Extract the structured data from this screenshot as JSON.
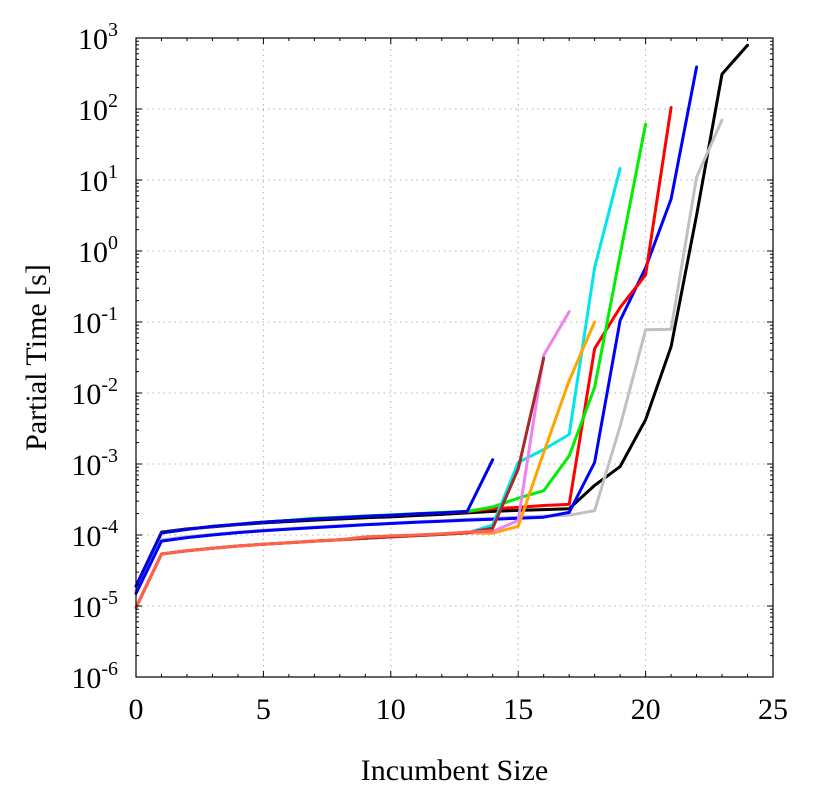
{
  "chart_data": {
    "type": "line",
    "title": "",
    "xlabel": "Incumbent Size",
    "ylabel": "Partial Time [s]",
    "xlim": [
      0,
      25
    ],
    "ylim_exponent": [
      -6,
      3
    ],
    "yscale": "log",
    "grid": true,
    "x_ticks": [
      "0",
      "5",
      "10",
      "15",
      "20",
      "25"
    ],
    "y_ticks": [
      {
        "base": "10",
        "exp": "-6"
      },
      {
        "base": "10",
        "exp": "-5"
      },
      {
        "base": "10",
        "exp": "-4"
      },
      {
        "base": "10",
        "exp": "-3"
      },
      {
        "base": "10",
        "exp": "-2"
      },
      {
        "base": "10",
        "exp": "-1"
      },
      {
        "base": "10",
        "exp": "0"
      },
      {
        "base": "10",
        "exp": "1"
      },
      {
        "base": "10",
        "exp": "2"
      },
      {
        "base": "10",
        "exp": "3"
      }
    ],
    "series": [
      {
        "color": "#000000",
        "x": [
          0,
          1,
          2,
          3,
          4,
          5,
          6,
          7,
          8,
          9,
          10,
          11,
          12,
          13,
          14,
          15,
          16,
          17,
          18,
          19,
          20,
          21,
          22,
          23,
          24
        ],
        "y": [
          1.9e-05,
          0.00011,
          0.000122,
          0.00013,
          0.00014,
          0.000148,
          0.000155,
          0.000162,
          0.000168,
          0.000175,
          0.00018,
          0.000188,
          0.000195,
          0.000205,
          0.000215,
          0.000222,
          0.000228,
          0.000235,
          0.0005,
          0.00092,
          0.0042,
          0.045,
          3.2,
          310,
          790
        ]
      },
      {
        "color": "#c0c0c0",
        "x": [
          0,
          1,
          2,
          3,
          4,
          5,
          6,
          7,
          8,
          9,
          10,
          11,
          12,
          13,
          14,
          15,
          16,
          17,
          18,
          19,
          20,
          21,
          22,
          23
        ],
        "y": [
          1.6e-05,
          8.5e-05,
          9.5e-05,
          0.000102,
          0.00011,
          0.000117,
          0.000123,
          0.000129,
          0.000135,
          0.000141,
          0.000147,
          0.000153,
          0.000159,
          0.000166,
          0.000172,
          0.000178,
          0.000185,
          0.00019,
          0.00022,
          0.0034,
          0.078,
          0.079,
          11,
          70
        ]
      },
      {
        "color": "#0000ff",
        "x": [
          0,
          1,
          2,
          3,
          4,
          5,
          6,
          7,
          8,
          9,
          10,
          11,
          12,
          13,
          14,
          15,
          16,
          17,
          18,
          19,
          20,
          21,
          22
        ],
        "y": [
          1.5e-05,
          8.2e-05,
          9.2e-05,
          0.0001,
          0.000108,
          0.000115,
          0.000121,
          0.000127,
          0.000133,
          0.000139,
          0.000145,
          0.000151,
          0.000156,
          0.000162,
          0.000167,
          0.000172,
          0.000178,
          0.000208,
          0.00105,
          0.105,
          0.58,
          5.4,
          390
        ]
      },
      {
        "color": "#ff0000",
        "x": [
          0,
          1,
          2,
          3,
          4,
          5,
          6,
          7,
          8,
          9,
          10,
          11,
          12,
          13,
          14,
          15,
          16,
          17,
          18,
          19,
          20,
          21
        ],
        "y": [
          1.9e-05,
          0.000107,
          0.00012,
          0.000132,
          0.000142,
          0.000152,
          0.00016,
          0.000168,
          0.000176,
          0.000184,
          0.00019,
          0.000198,
          0.000205,
          0.000212,
          0.000235,
          0.000245,
          0.00026,
          0.00027,
          0.042,
          0.16,
          0.46,
          105
        ]
      },
      {
        "color": "#00ee00",
        "x": [
          0,
          1,
          2,
          3,
          4,
          5,
          6,
          7,
          8,
          9,
          10,
          11,
          12,
          13,
          14,
          15,
          16,
          17,
          18,
          19,
          20
        ],
        "y": [
          1.9e-05,
          0.000107,
          0.00012,
          0.000132,
          0.000142,
          0.000152,
          0.00016,
          0.000172,
          0.000178,
          0.000185,
          0.000192,
          0.0002,
          0.000208,
          0.000215,
          0.000248,
          0.00033,
          0.00042,
          0.0013,
          0.012,
          0.88,
          61
        ]
      },
      {
        "color": "#00e5ee",
        "x": [
          0,
          1,
          2,
          3,
          4,
          5,
          6,
          7,
          8,
          9,
          10,
          11,
          12,
          13,
          14,
          15,
          16,
          17,
          18,
          19
        ],
        "y": [
          9.5e-06,
          5.4e-05,
          6e-05,
          6.5e-05,
          7e-05,
          7.4e-05,
          7.8e-05,
          8.2e-05,
          8.6e-05,
          9e-05,
          9.4e-05,
          9.8e-05,
          0.000102,
          0.000107,
          0.000138,
          0.00105,
          0.0016,
          0.0026,
          0.58,
          14.5
        ]
      },
      {
        "color": "#ffa500",
        "x": [
          0,
          1,
          2,
          3,
          4,
          5,
          6,
          7,
          8,
          9,
          10,
          11,
          12,
          13,
          14,
          15,
          16,
          17,
          18
        ],
        "y": [
          9.5e-06,
          5.4e-05,
          6e-05,
          6.5e-05,
          7e-05,
          7.4e-05,
          7.8e-05,
          8.2e-05,
          8.6e-05,
          9e-05,
          9.4e-05,
          9.8e-05,
          0.000102,
          0.000107,
          0.000106,
          0.000132,
          0.00145,
          0.015,
          0.1
        ]
      },
      {
        "color": "#ee82ee",
        "x": [
          0,
          1,
          2,
          3,
          4,
          5,
          6,
          7,
          8,
          9,
          10,
          11,
          12,
          13,
          14,
          15,
          16,
          17
        ],
        "y": [
          9.5e-06,
          5.4e-05,
          6e-05,
          6.5e-05,
          7e-05,
          7.4e-05,
          7.8e-05,
          8.2e-05,
          8.6e-05,
          9e-05,
          9.4e-05,
          9.8e-05,
          0.000102,
          0.000107,
          0.000112,
          0.00016,
          0.034,
          0.14
        ]
      },
      {
        "color": "#a52a2a",
        "x": [
          0,
          1,
          2,
          3,
          4,
          5,
          6,
          7,
          8,
          9,
          10,
          11,
          12,
          13,
          14,
          15,
          16
        ],
        "y": [
          9.5e-06,
          5.4e-05,
          6e-05,
          6.5e-05,
          7e-05,
          7.4e-05,
          7.8e-05,
          8.2e-05,
          8.6e-05,
          9e-05,
          9.4e-05,
          9.8e-05,
          0.000102,
          0.000107,
          0.000125,
          0.00085,
          0.031
        ]
      },
      {
        "color": "#0000ee",
        "x": [
          0,
          1,
          2,
          3,
          4,
          5,
          6,
          7,
          8,
          9,
          10,
          11,
          12,
          13,
          14
        ],
        "y": [
          1.9e-05,
          0.000107,
          0.00012,
          0.000132,
          0.000142,
          0.000152,
          0.00016,
          0.000168,
          0.000176,
          0.000184,
          0.00019,
          0.000198,
          0.000205,
          0.000215,
          0.00115
        ]
      },
      {
        "color": "#ff6347",
        "x": [
          0,
          1,
          2,
          3,
          4,
          5,
          6,
          7,
          8,
          9,
          10,
          11,
          12,
          13,
          14
        ],
        "y": [
          9.5e-06,
          5.4e-05,
          6e-05,
          6.5e-05,
          7e-05,
          7.4e-05,
          7.8e-05,
          8.2e-05,
          8.6e-05,
          9.4e-05,
          9.7e-05,
          0.0001,
          0.000104,
          0.00011,
          0.000114
        ]
      }
    ]
  }
}
